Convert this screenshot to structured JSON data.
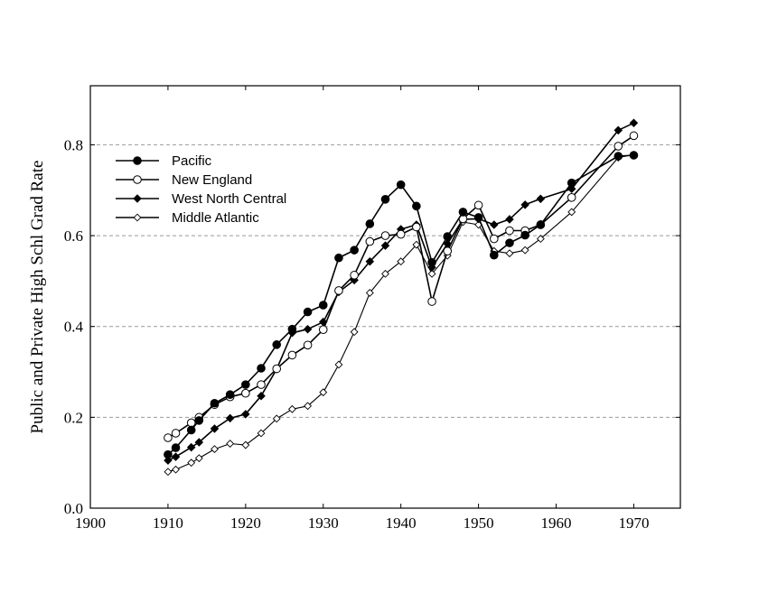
{
  "chart_data": {
    "type": "line",
    "title": "",
    "xlabel": "",
    "ylabel": "Public and Private High Schl Grad Rate",
    "xlim": [
      1900,
      1976
    ],
    "ylim": [
      0.0,
      0.93
    ],
    "xticks": [
      1900,
      1910,
      1920,
      1930,
      1940,
      1950,
      1960,
      1970
    ],
    "xtick_labels": [
      "1900",
      "1910",
      "1920",
      "1930",
      "1940",
      "1950",
      "1960",
      "1970"
    ],
    "yticks": [
      0.0,
      0.2,
      0.4,
      0.6,
      0.8
    ],
    "ytick_labels": [
      "0.0",
      "0.2",
      "0.4",
      "0.6",
      "0.8"
    ],
    "grid": "horizontal dashed at y ticks",
    "legend_position": "upper-left",
    "series": [
      {
        "name": "Pacific",
        "marker": "filled-circle",
        "points": [
          [
            1910,
            0.118
          ],
          [
            1911,
            0.133
          ],
          [
            1913,
            0.172
          ],
          [
            1914,
            0.193
          ],
          [
            1916,
            0.231
          ],
          [
            1918,
            0.25
          ],
          [
            1920,
            0.272
          ],
          [
            1922,
            0.308
          ],
          [
            1924,
            0.36
          ],
          [
            1926,
            0.394
          ],
          [
            1928,
            0.432
          ],
          [
            1930,
            0.447
          ],
          [
            1932,
            0.551
          ],
          [
            1934,
            0.568
          ],
          [
            1936,
            0.626
          ],
          [
            1938,
            0.68
          ],
          [
            1940,
            0.712
          ],
          [
            1942,
            0.665
          ],
          [
            1944,
            0.541
          ],
          [
            1946,
            0.598
          ],
          [
            1948,
            0.652
          ],
          [
            1950,
            0.64
          ],
          [
            1952,
            0.557
          ],
          [
            1954,
            0.584
          ],
          [
            1956,
            0.601
          ],
          [
            1958,
            0.624
          ],
          [
            1962,
            0.716
          ],
          [
            1968,
            0.775
          ],
          [
            1970,
            0.777
          ]
        ]
      },
      {
        "name": "New England",
        "marker": "open-circle",
        "points": [
          [
            1910,
            0.155
          ],
          [
            1911,
            0.165
          ],
          [
            1913,
            0.188
          ],
          [
            1914,
            0.2
          ],
          [
            1916,
            0.228
          ],
          [
            1918,
            0.245
          ],
          [
            1920,
            0.253
          ],
          [
            1922,
            0.272
          ],
          [
            1924,
            0.307
          ],
          [
            1926,
            0.337
          ],
          [
            1928,
            0.359
          ],
          [
            1930,
            0.393
          ],
          [
            1932,
            0.479
          ],
          [
            1934,
            0.513
          ],
          [
            1936,
            0.587
          ],
          [
            1938,
            0.6
          ],
          [
            1940,
            0.603
          ],
          [
            1942,
            0.619
          ],
          [
            1944,
            0.455
          ],
          [
            1946,
            0.566
          ],
          [
            1948,
            0.637
          ],
          [
            1950,
            0.667
          ],
          [
            1952,
            0.593
          ],
          [
            1954,
            0.611
          ],
          [
            1956,
            0.611
          ],
          [
            1958,
            0.624
          ],
          [
            1962,
            0.684
          ],
          [
            1968,
            0.797
          ],
          [
            1970,
            0.82
          ]
        ]
      },
      {
        "name": "West North Central",
        "marker": "filled-diamond",
        "points": [
          [
            1910,
            0.105
          ],
          [
            1911,
            0.113
          ],
          [
            1913,
            0.134
          ],
          [
            1914,
            0.145
          ],
          [
            1916,
            0.175
          ],
          [
            1918,
            0.198
          ],
          [
            1920,
            0.207
          ],
          [
            1922,
            0.247
          ],
          [
            1924,
            0.306
          ],
          [
            1926,
            0.386
          ],
          [
            1928,
            0.394
          ],
          [
            1930,
            0.41
          ],
          [
            1932,
            0.476
          ],
          [
            1934,
            0.502
          ],
          [
            1936,
            0.543
          ],
          [
            1938,
            0.578
          ],
          [
            1940,
            0.614
          ],
          [
            1942,
            0.624
          ],
          [
            1944,
            0.53
          ],
          [
            1946,
            0.582
          ],
          [
            1948,
            0.636
          ],
          [
            1950,
            0.637
          ],
          [
            1952,
            0.624
          ],
          [
            1954,
            0.636
          ],
          [
            1956,
            0.668
          ],
          [
            1958,
            0.681
          ],
          [
            1962,
            0.703
          ],
          [
            1968,
            0.832
          ],
          [
            1970,
            0.848
          ]
        ]
      },
      {
        "name": "Middle Atlantic",
        "marker": "open-diamond",
        "points": [
          [
            1910,
            0.08
          ],
          [
            1911,
            0.085
          ],
          [
            1913,
            0.1
          ],
          [
            1914,
            0.11
          ],
          [
            1916,
            0.13
          ],
          [
            1918,
            0.142
          ],
          [
            1920,
            0.139
          ],
          [
            1922,
            0.165
          ],
          [
            1924,
            0.197
          ],
          [
            1926,
            0.218
          ],
          [
            1928,
            0.225
          ],
          [
            1930,
            0.255
          ],
          [
            1932,
            0.316
          ],
          [
            1934,
            0.388
          ],
          [
            1936,
            0.474
          ],
          [
            1938,
            0.516
          ],
          [
            1940,
            0.543
          ],
          [
            1942,
            0.58
          ],
          [
            1944,
            0.516
          ],
          [
            1946,
            0.556
          ],
          [
            1948,
            0.63
          ],
          [
            1950,
            0.624
          ],
          [
            1952,
            0.566
          ],
          [
            1954,
            0.561
          ],
          [
            1956,
            0.568
          ],
          [
            1958,
            0.593
          ],
          [
            1962,
            0.652
          ],
          [
            1968,
            0.772
          ],
          [
            1970,
            0.778
          ]
        ]
      }
    ]
  }
}
